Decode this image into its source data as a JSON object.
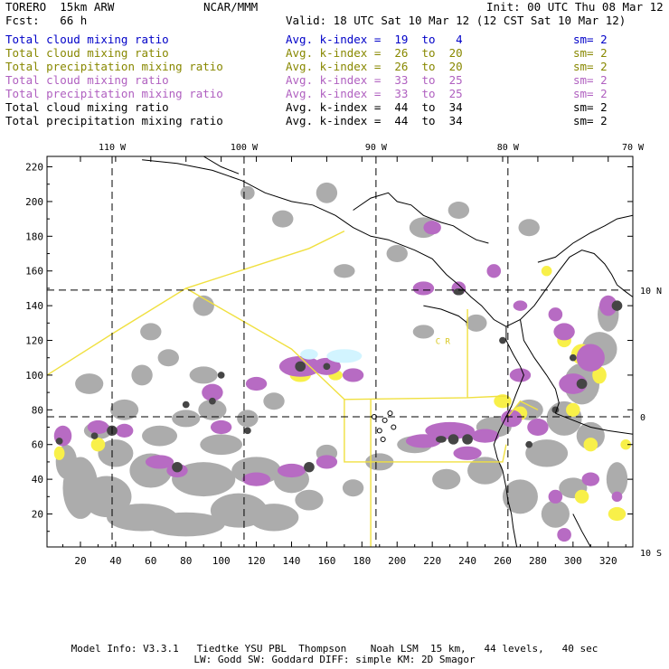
{
  "header": {
    "model": "TORERO  15km ARW",
    "org": "NCAR/MMM",
    "init": "Init: 00 UTC Thu 08 Mar 12",
    "fcst": "Fcst:   66 h",
    "valid": "Valid: 18 UTC Sat 10 Mar 12 (12 CST Sat 10 Mar 12)"
  },
  "legend": [
    {
      "field": "Total cloud mixing ratio",
      "index": "Avg. k-index =  19  to   4",
      "sm": "sm= 2",
      "color": "#0000c8"
    },
    {
      "field": "Total cloud mixing ratio",
      "index": "Avg. k-index =  26  to  20",
      "sm": "sm= 2",
      "color": "#888800"
    },
    {
      "field": "Total precipitation mixing ratio",
      "index": "Avg. k-index =  26  to  20",
      "sm": "sm= 2",
      "color": "#888800"
    },
    {
      "field": "Total cloud mixing ratio",
      "index": "Avg. k-index =  33  to  25",
      "sm": "sm= 2",
      "color": "#b060c0"
    },
    {
      "field": "Total precipitation mixing ratio",
      "index": "Avg. k-index =  33  to  25",
      "sm": "sm= 2",
      "color": "#b060c0"
    },
    {
      "field": "Total cloud mixing ratio",
      "index": "Avg. k-index =  44  to  34",
      "sm": "sm= 2",
      "color": "#000000"
    },
    {
      "field": "Total precipitation mixing ratio",
      "index": "Avg. k-index =  44  to  34",
      "sm": "sm= 2",
      "color": "#000000"
    }
  ],
  "map": {
    "lon_labels": [
      "110 W",
      "100 W",
      "90 W",
      "80 W",
      "70 W"
    ],
    "lat_labels": [
      "10 N",
      "0",
      "10 S"
    ],
    "x_ticks": [
      "20",
      "40",
      "60",
      "80",
      "100",
      "120",
      "140",
      "160",
      "180",
      "200",
      "220",
      "240",
      "260",
      "280",
      "300",
      "320"
    ],
    "y_ticks": [
      "20",
      "40",
      "60",
      "80",
      "100",
      "120",
      "140",
      "160",
      "180",
      "200",
      "220"
    ],
    "x_range": [
      1,
      334
    ],
    "y_range": [
      1,
      226
    ],
    "region_labels": [
      "C R"
    ],
    "colors": {
      "cloud": "#a8a8a8",
      "dark": "#3c3c3c",
      "magenta": "#b464c0",
      "yellow": "#f8f040",
      "cyan": "#d0f4ff",
      "boundary": "#f0e040"
    }
  },
  "footer": {
    "line1": "Model Info: V3.3.1   Tiedtke YSU PBL  Thompson    Noah LSM  15 km,   44 levels,   40 sec",
    "line2": "LW: Godd SW: Goddard DIFF: simple KM: 2D Smagor"
  }
}
